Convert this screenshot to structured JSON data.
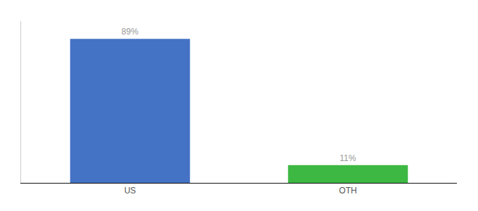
{
  "chart_data": {
    "type": "bar",
    "categories": [
      "US",
      "OTH"
    ],
    "values": [
      89,
      11
    ],
    "value_labels": [
      "89%",
      "11%"
    ],
    "data_labels": true,
    "colors": [
      "#4472c4",
      "#3cb843"
    ],
    "ylim": [
      0,
      100
    ],
    "grid": false,
    "tick_labels": "x"
  }
}
